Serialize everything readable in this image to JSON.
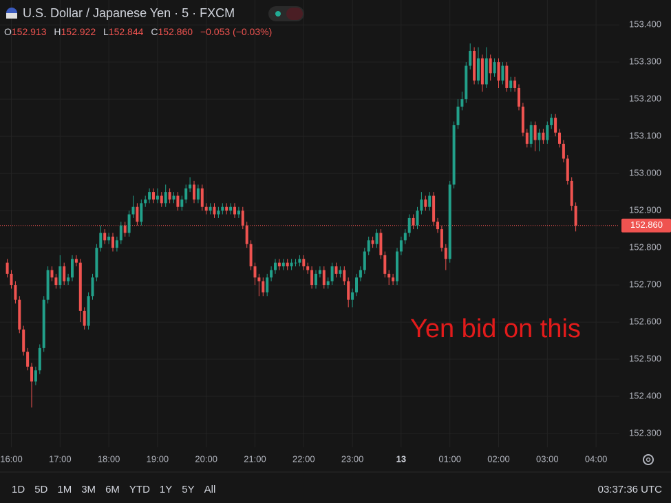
{
  "chart_data": {
    "type": "candlestick",
    "title": "U.S. Dollar / Japanese Yen · 5 · FXCM",
    "ohlc_legend": {
      "open_label": "O",
      "open": "152.913",
      "high_label": "H",
      "high": "152.922",
      "low_label": "L",
      "low": "152.844",
      "close_label": "C",
      "close": "152.860",
      "change": "−0.053",
      "change_pct": "(−0.03%)"
    },
    "annotation": "Yen bid on this",
    "categories": [
      null,
      "16:00",
      null,
      null,
      null,
      null,
      null,
      null,
      null,
      null,
      null,
      null,
      null,
      "17:00",
      null,
      null,
      null,
      null,
      null,
      null,
      null,
      null,
      null,
      null,
      null,
      "18:00",
      null,
      null,
      null,
      null,
      null,
      null,
      null,
      null,
      null,
      null,
      null,
      "19:00",
      null,
      null,
      null,
      null,
      null,
      null,
      null,
      null,
      null,
      null,
      null,
      "20:00",
      null,
      null,
      null,
      null,
      null,
      null,
      null,
      null,
      null,
      null,
      null,
      "21:00",
      null,
      null,
      null,
      null,
      null,
      null,
      null,
      null,
      null,
      null,
      null,
      "22:00",
      null,
      null,
      null,
      null,
      null,
      null,
      null,
      null,
      null,
      null,
      null,
      "23:00",
      null,
      null,
      null,
      null,
      null,
      null,
      null,
      null,
      null,
      null,
      null,
      "13",
      null,
      null,
      null,
      null,
      null,
      null,
      null,
      null,
      null,
      null,
      null,
      "01:00",
      null,
      null,
      null,
      null,
      null,
      null,
      null,
      null,
      null,
      null,
      null,
      "02:00",
      null,
      null,
      null,
      null,
      null,
      null,
      null,
      null,
      null,
      null,
      null,
      "03:00",
      null,
      null,
      null,
      null,
      null,
      null,
      null,
      null,
      null,
      null,
      null,
      "04:00",
      null,
      null,
      null
    ],
    "open": [
      152.76,
      152.73,
      152.7,
      152.66,
      152.58,
      152.52,
      152.48,
      152.44,
      152.47,
      152.53,
      152.66,
      152.74,
      152.72,
      152.7,
      152.75,
      152.71,
      152.72,
      152.77,
      152.76,
      152.63,
      152.59,
      152.67,
      152.72,
      152.8,
      152.84,
      152.82,
      152.83,
      152.8,
      152.82,
      152.86,
      152.84,
      152.89,
      152.91,
      152.87,
      152.92,
      152.93,
      152.95,
      152.93,
      152.94,
      152.92,
      152.95,
      152.93,
      152.94,
      152.91,
      152.93,
      152.96,
      152.97,
      152.93,
      152.96,
      152.91,
      152.9,
      152.91,
      152.89,
      152.9,
      152.91,
      152.9,
      152.91,
      152.89,
      152.9,
      152.86,
      152.81,
      152.75,
      152.72,
      152.71,
      152.68,
      152.72,
      152.74,
      152.76,
      152.75,
      152.76,
      152.75,
      152.76,
      152.76,
      152.77,
      152.75,
      152.74,
      152.7,
      152.73,
      152.74,
      152.7,
      152.71,
      152.75,
      152.73,
      152.74,
      152.71,
      152.66,
      152.68,
      152.72,
      152.74,
      152.79,
      152.82,
      152.81,
      152.84,
      152.78,
      152.73,
      152.72,
      152.71,
      152.79,
      152.82,
      152.84,
      152.88,
      152.86,
      152.9,
      152.93,
      152.91,
      152.94,
      152.87,
      152.85,
      152.8,
      152.77,
      152.97,
      153.13,
      153.18,
      153.2,
      153.29,
      153.33,
      153.25,
      153.31,
      153.24,
      153.31,
      153.27,
      153.3,
      153.25,
      153.29,
      153.23,
      153.25,
      153.23,
      153.18,
      153.11,
      153.08,
      153.13,
      153.09,
      153.11,
      153.09,
      153.13,
      153.15,
      153.11,
      153.08,
      153.04,
      152.98,
      152.913,
      null,
      null,
      null,
      null,
      null,
      null,
      null,
      null
    ],
    "high": [
      152.77,
      152.74,
      152.71,
      152.67,
      152.59,
      152.53,
      152.49,
      152.48,
      152.54,
      152.67,
      152.75,
      152.75,
      152.73,
      152.78,
      152.76,
      152.73,
      152.78,
      152.78,
      152.77,
      152.64,
      152.68,
      152.73,
      152.81,
      152.86,
      152.85,
      152.84,
      152.84,
      152.83,
      152.87,
      152.87,
      152.9,
      152.94,
      152.92,
      152.93,
      152.94,
      152.96,
      152.96,
      152.96,
      152.95,
      152.97,
      152.96,
      152.95,
      152.95,
      152.94,
      152.97,
      152.99,
      152.98,
      152.97,
      152.97,
      152.92,
      152.92,
      152.92,
      152.91,
      152.92,
      152.92,
      152.92,
      152.92,
      152.91,
      152.91,
      152.87,
      152.82,
      152.76,
      152.73,
      152.72,
      152.73,
      152.75,
      152.77,
      152.77,
      152.77,
      152.77,
      152.77,
      152.77,
      152.78,
      152.78,
      152.76,
      152.75,
      152.74,
      152.75,
      152.75,
      152.72,
      152.76,
      152.76,
      152.75,
      152.75,
      152.72,
      152.69,
      152.73,
      152.75,
      152.8,
      152.83,
      152.83,
      152.85,
      152.85,
      152.79,
      152.74,
      152.73,
      152.8,
      152.83,
      152.85,
      152.89,
      152.89,
      152.91,
      152.95,
      152.94,
      152.95,
      152.95,
      152.88,
      152.86,
      152.81,
      152.98,
      153.14,
      153.2,
      153.22,
      153.3,
      153.35,
      153.34,
      153.34,
      153.32,
      153.34,
      153.32,
      153.31,
      153.31,
      153.3,
      153.3,
      153.26,
      153.26,
      153.24,
      153.19,
      153.12,
      153.14,
      153.14,
      153.12,
      153.12,
      153.14,
      153.16,
      153.16,
      153.12,
      153.09,
      153.05,
      152.99,
      152.922,
      null,
      null,
      null,
      null,
      null,
      null,
      null,
      null
    ],
    "low": [
      152.72,
      152.69,
      152.65,
      152.57,
      152.51,
      152.47,
      152.37,
      152.43,
      152.46,
      152.52,
      152.65,
      152.71,
      152.69,
      152.69,
      152.7,
      152.7,
      152.71,
      152.75,
      152.6,
      152.58,
      152.58,
      152.66,
      152.71,
      152.79,
      152.81,
      152.81,
      152.79,
      152.79,
      152.81,
      152.83,
      152.83,
      152.88,
      152.86,
      152.86,
      152.91,
      152.92,
      152.92,
      152.92,
      152.91,
      152.91,
      152.92,
      152.92,
      152.9,
      152.9,
      152.92,
      152.95,
      152.92,
      152.92,
      152.9,
      152.89,
      152.89,
      152.88,
      152.88,
      152.89,
      152.89,
      152.89,
      152.88,
      152.88,
      152.85,
      152.8,
      152.74,
      152.7,
      152.67,
      152.67,
      152.67,
      152.71,
      152.73,
      152.74,
      152.74,
      152.74,
      152.74,
      152.75,
      152.75,
      152.74,
      152.73,
      152.69,
      152.69,
      152.72,
      152.69,
      152.69,
      152.7,
      152.72,
      152.72,
      152.7,
      152.64,
      152.64,
      152.67,
      152.71,
      152.73,
      152.78,
      152.8,
      152.8,
      152.77,
      152.72,
      152.7,
      152.7,
      152.7,
      152.78,
      152.81,
      152.83,
      152.85,
      152.85,
      152.89,
      152.9,
      152.9,
      152.86,
      152.84,
      152.79,
      152.74,
      152.76,
      152.96,
      153.12,
      153.17,
      153.19,
      153.28,
      153.24,
      153.24,
      153.22,
      153.23,
      153.25,
      153.26,
      153.23,
      153.24,
      153.22,
      153.22,
      153.22,
      153.17,
      153.1,
      153.07,
      153.07,
      153.06,
      153.06,
      153.08,
      153.08,
      153.12,
      153.1,
      153.07,
      153.03,
      152.97,
      152.9,
      152.844,
      null,
      null,
      null,
      null,
      null,
      null,
      null,
      null
    ],
    "close": [
      152.73,
      152.7,
      152.66,
      152.58,
      152.52,
      152.48,
      152.44,
      152.47,
      152.53,
      152.66,
      152.74,
      152.72,
      152.7,
      152.75,
      152.71,
      152.72,
      152.77,
      152.76,
      152.63,
      152.59,
      152.67,
      152.72,
      152.8,
      152.84,
      152.82,
      152.83,
      152.8,
      152.82,
      152.86,
      152.84,
      152.89,
      152.91,
      152.87,
      152.92,
      152.93,
      152.95,
      152.93,
      152.94,
      152.92,
      152.95,
      152.93,
      152.94,
      152.91,
      152.93,
      152.96,
      152.97,
      152.93,
      152.96,
      152.91,
      152.9,
      152.91,
      152.89,
      152.9,
      152.91,
      152.9,
      152.91,
      152.89,
      152.9,
      152.86,
      152.81,
      152.75,
      152.72,
      152.71,
      152.68,
      152.72,
      152.74,
      152.76,
      152.75,
      152.76,
      152.75,
      152.76,
      152.76,
      152.77,
      152.75,
      152.74,
      152.7,
      152.73,
      152.74,
      152.7,
      152.71,
      152.75,
      152.73,
      152.74,
      152.71,
      152.66,
      152.68,
      152.72,
      152.74,
      152.79,
      152.82,
      152.81,
      152.84,
      152.78,
      152.73,
      152.72,
      152.71,
      152.79,
      152.82,
      152.84,
      152.88,
      152.86,
      152.9,
      152.93,
      152.91,
      152.94,
      152.87,
      152.85,
      152.8,
      152.77,
      152.97,
      153.13,
      153.18,
      153.2,
      153.29,
      153.33,
      153.25,
      153.31,
      153.24,
      153.31,
      153.27,
      153.3,
      153.25,
      153.29,
      153.23,
      153.25,
      153.23,
      153.18,
      153.11,
      153.08,
      153.13,
      153.09,
      153.11,
      153.09,
      153.13,
      153.15,
      153.11,
      153.08,
      153.04,
      152.98,
      152.913,
      152.86,
      null,
      null,
      null,
      null,
      null,
      null,
      null,
      null
    ],
    "up_color": "#22a08a",
    "down_color": "#ef5350",
    "ylim": [
      152.263,
      153.467
    ],
    "yticks": [
      {
        "value": 152.3,
        "label": "152.300"
      },
      {
        "value": 152.4,
        "label": "152.400"
      },
      {
        "value": 152.5,
        "label": "152.500"
      },
      {
        "value": 152.6,
        "label": "152.600"
      },
      {
        "value": 152.7,
        "label": "152.700"
      },
      {
        "value": 152.8,
        "label": "152.800"
      },
      {
        "value": 152.9,
        "label": "152.900"
      },
      {
        "value": 153.0,
        "label": "153.000"
      },
      {
        "value": 153.1,
        "label": "153.100"
      },
      {
        "value": 153.2,
        "label": "153.200"
      },
      {
        "value": 153.3,
        "label": "153.300"
      },
      {
        "value": 153.4,
        "label": "153.400"
      }
    ],
    "last_price": {
      "value": 152.86,
      "label": "152.860"
    },
    "grid": true,
    "ranges": [
      "1D",
      "5D",
      "1M",
      "3M",
      "6M",
      "YTD",
      "1Y",
      "5Y",
      "All"
    ],
    "clock": "03:37:36 UTC"
  }
}
